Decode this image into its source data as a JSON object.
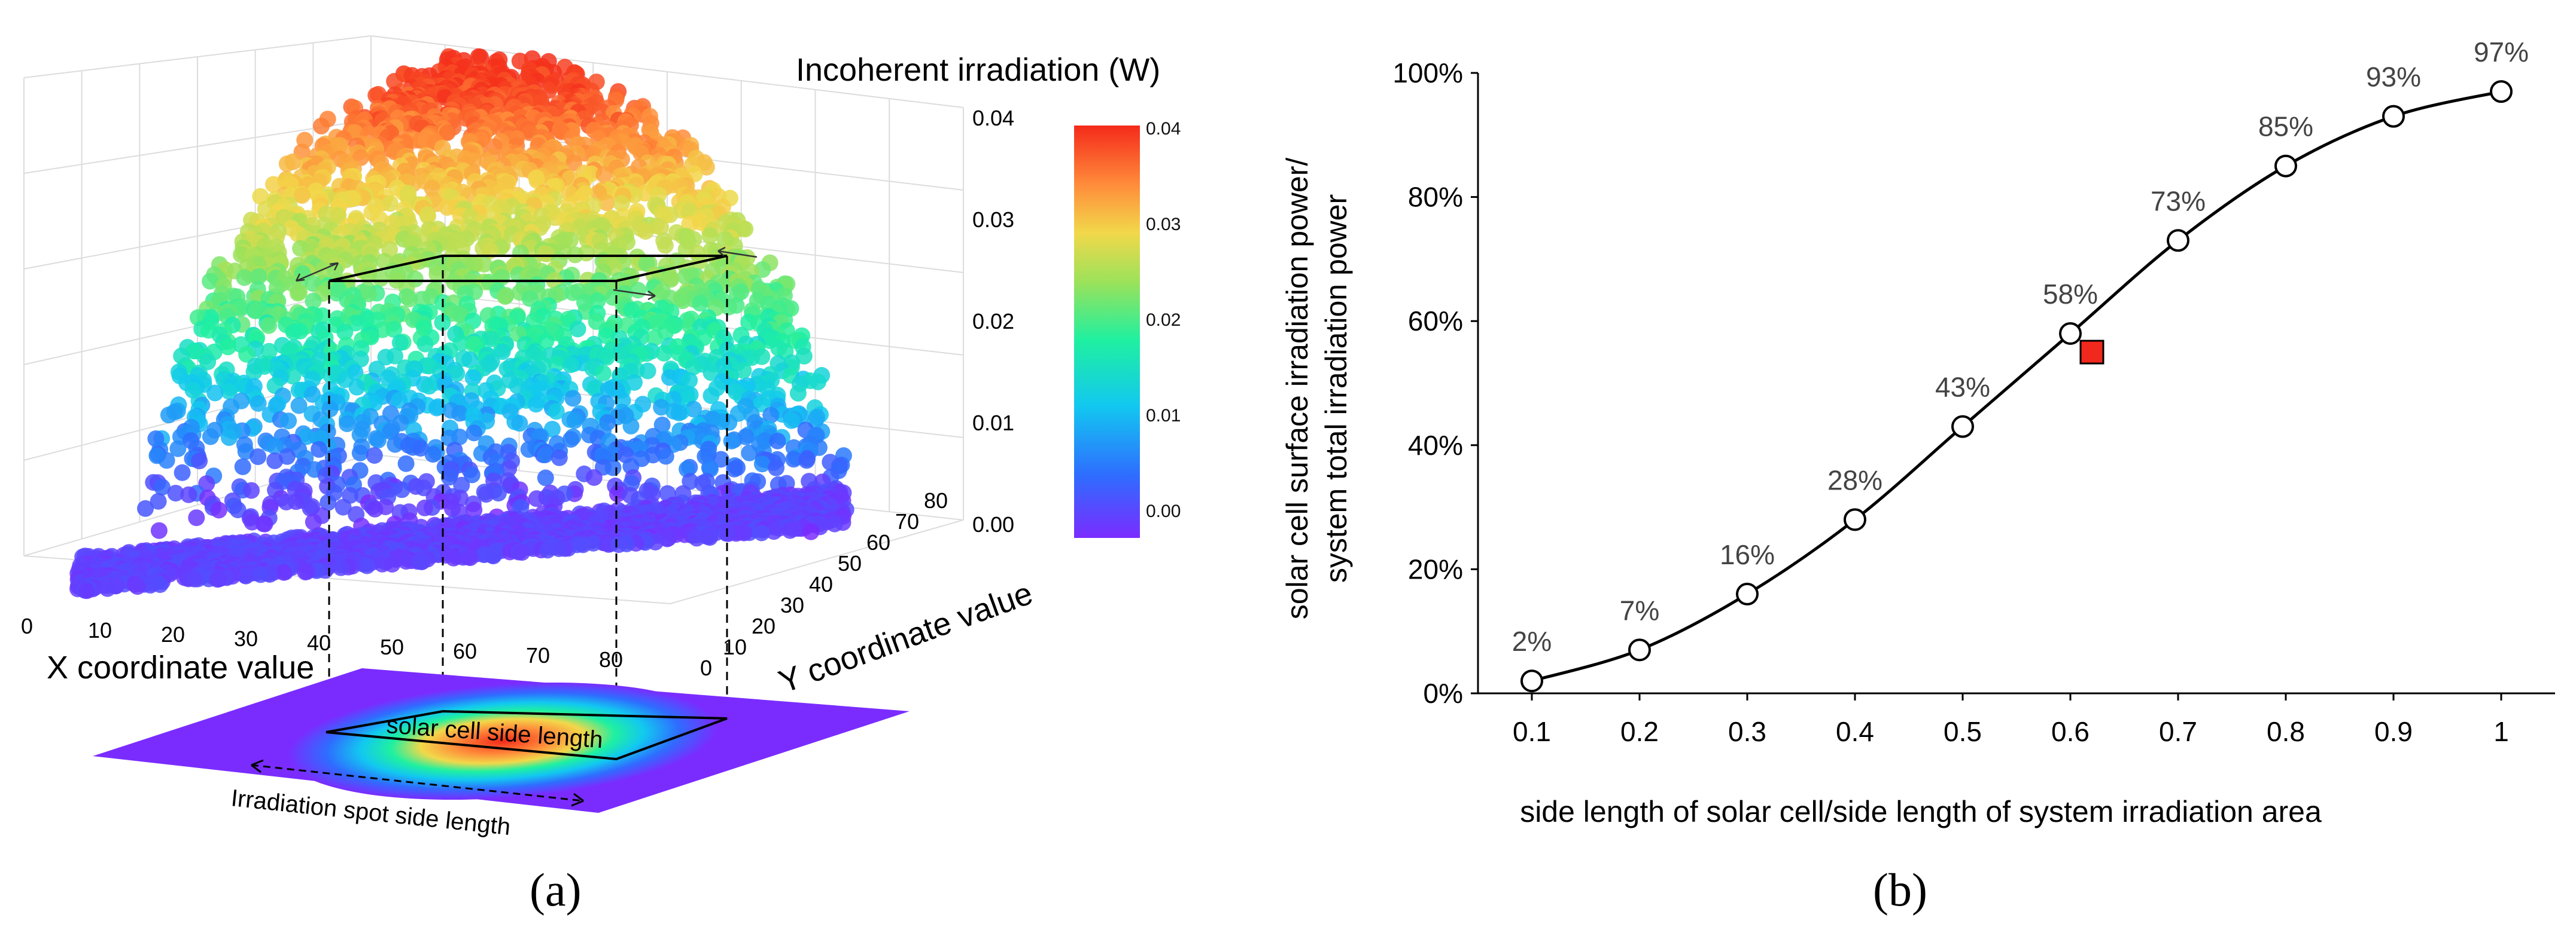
{
  "panel_a": {
    "caption": "(a)",
    "title": "Incoherent irradiation (W)",
    "x_axis_label": "X coordinate value",
    "y_axis_label": "Y coordinate value",
    "x_ticks": [
      "0",
      "10",
      "20",
      "30",
      "40",
      "50",
      "60",
      "70",
      "80"
    ],
    "y_ticks": [
      "0",
      "10",
      "20",
      "30",
      "40",
      "50",
      "60",
      "70",
      "80"
    ],
    "z_ticks": [
      "0.04",
      "0.03",
      "0.02",
      "0.01",
      "0.00"
    ],
    "colorbar_ticks": [
      "0.04",
      "0.03",
      "0.02",
      "0.01",
      "0.00"
    ],
    "colormap": [
      "#7a2cff",
      "#2f6cff",
      "#12c8f0",
      "#1ff0a0",
      "#9be25a",
      "#f2d84a",
      "#ff8a3a",
      "#f42a1a"
    ],
    "annotation_cell": "solar cell side length",
    "annotation_spot": "Irradiation spot side length"
  },
  "panel_b": {
    "caption": "(b)",
    "chart_data": {
      "type": "line",
      "title": "",
      "xlabel": "side length of solar cell/side length of system irradiation area",
      "ylabel_line1": "solar cell surface irradiation power/",
      "ylabel_line2": "system total irradiation power",
      "categories": [
        "0.1",
        "0.2",
        "0.3",
        "0.4",
        "0.5",
        "0.6",
        "0.7",
        "0.8",
        "0.9",
        "1"
      ],
      "x": [
        0.1,
        0.2,
        0.3,
        0.4,
        0.5,
        0.6,
        0.7,
        0.8,
        0.9,
        1.0
      ],
      "values": [
        2,
        7,
        16,
        28,
        43,
        58,
        73,
        85,
        93,
        97
      ],
      "labels": [
        "2%",
        "7%",
        "16%",
        "28%",
        "43%",
        "58%",
        "73%",
        "85%",
        "93%",
        "97%"
      ],
      "y_ticks": [
        "0%",
        "20%",
        "40%",
        "60%",
        "80%",
        "100%"
      ],
      "ylim": [
        0,
        100
      ],
      "grid": false,
      "marker_point": {
        "x": 0.62,
        "y": 55,
        "color": "#f0281e"
      },
      "line_color": "#000000"
    }
  }
}
